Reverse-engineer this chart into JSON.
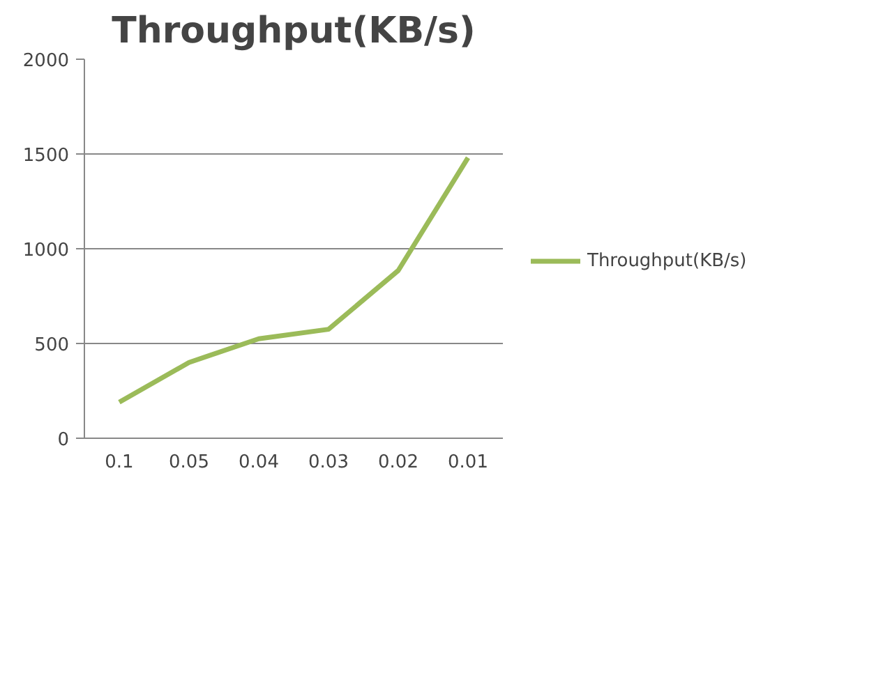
{
  "chart_data": {
    "type": "line",
    "title": "Throughput(KB/s)",
    "categories": [
      "0.1",
      "0.05",
      "0.04",
      "0.03",
      "0.02",
      "0.01"
    ],
    "series": [
      {
        "name": "Throughput(KB/s)",
        "color": "#9bbb59",
        "values": [
          190,
          400,
          525,
          575,
          885,
          1480
        ]
      }
    ],
    "ylim": [
      0,
      2000
    ],
    "yticks": [
      0,
      500,
      1000,
      1500,
      2000
    ],
    "grid": "y",
    "legend": "right",
    "marker": "none",
    "line_style": "solid"
  }
}
